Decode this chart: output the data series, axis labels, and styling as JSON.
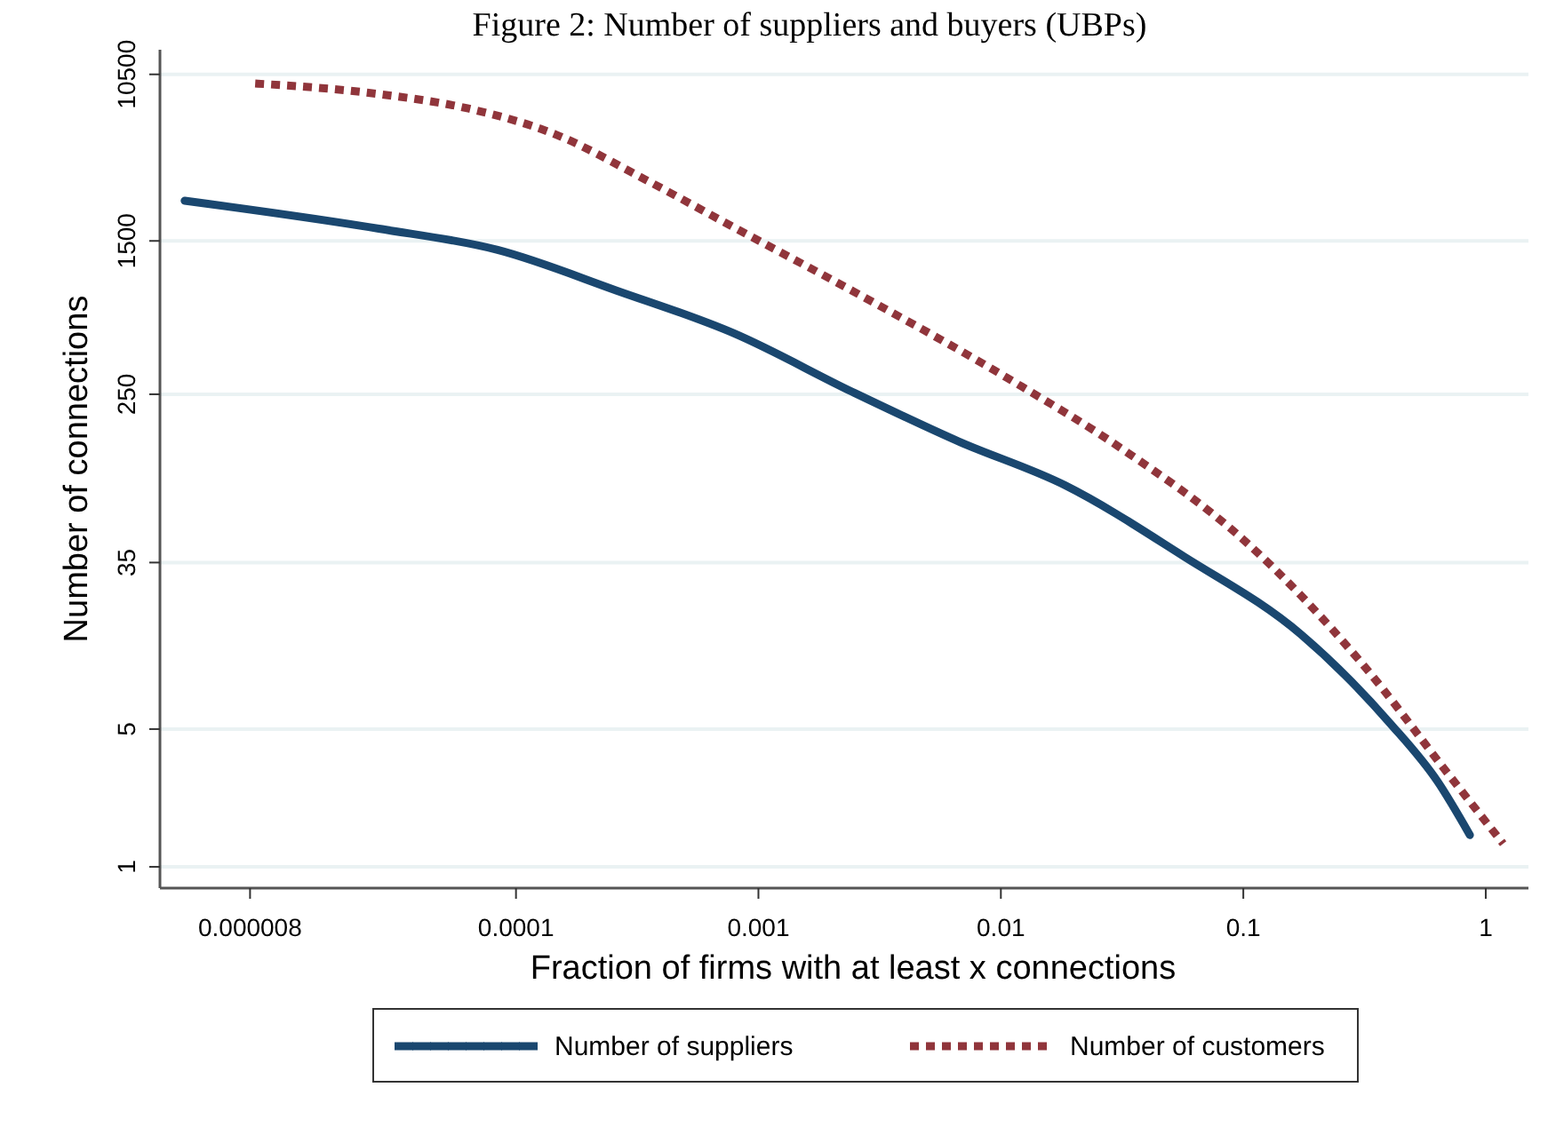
{
  "chart_data": {
    "type": "line",
    "title": "Figure 2: Number of suppliers and buyers (UBPs)",
    "xlabel": "Fraction of firms with at least x connections",
    "ylabel": "Number of connections",
    "log": "xy",
    "grid": "y",
    "legend": "bottom",
    "marker": "none",
    "xlim": [
      3.4e-06,
      1.5
    ],
    "xticks": [
      {
        "value": 8e-06,
        "label": "0.000008"
      },
      0.0001,
      0.001,
      0.01,
      0.1,
      1
    ],
    "ylim": [
      0.78,
      14000
    ],
    "yticks": [
      1,
      5,
      35,
      250,
      1500,
      10500
    ],
    "series": [
      {
        "name": "Number of suppliers",
        "color": "#1a476f",
        "line_style": "solid",
        "x": [
          4.3e-06,
          2.72e-05,
          8.4e-05,
          0.00026,
          0.00079,
          0.00244,
          0.0067,
          0.0185,
          0.057,
          0.173,
          0.403,
          0.634,
          0.86
        ],
        "values": [
          2400,
          1730,
          1350,
          840,
          510,
          257,
          144,
          86,
          37.5,
          15.1,
          5.35,
          2.7,
          1.45
        ]
      },
      {
        "name": "Number of customers",
        "color": "#90353b",
        "line_style": "dotted",
        "x": [
          8.4e-06,
          2.72e-05,
          6.3e-05,
          0.000147,
          0.00034,
          0.00079,
          0.00244,
          0.0106,
          0.0322,
          0.0995,
          0.308,
          0.714,
          1.18
        ],
        "values": [
          9440,
          8340,
          7060,
          5180,
          3080,
          1760,
          837,
          303,
          130,
          46,
          10.8,
          2.87,
          1.31
        ]
      }
    ]
  }
}
